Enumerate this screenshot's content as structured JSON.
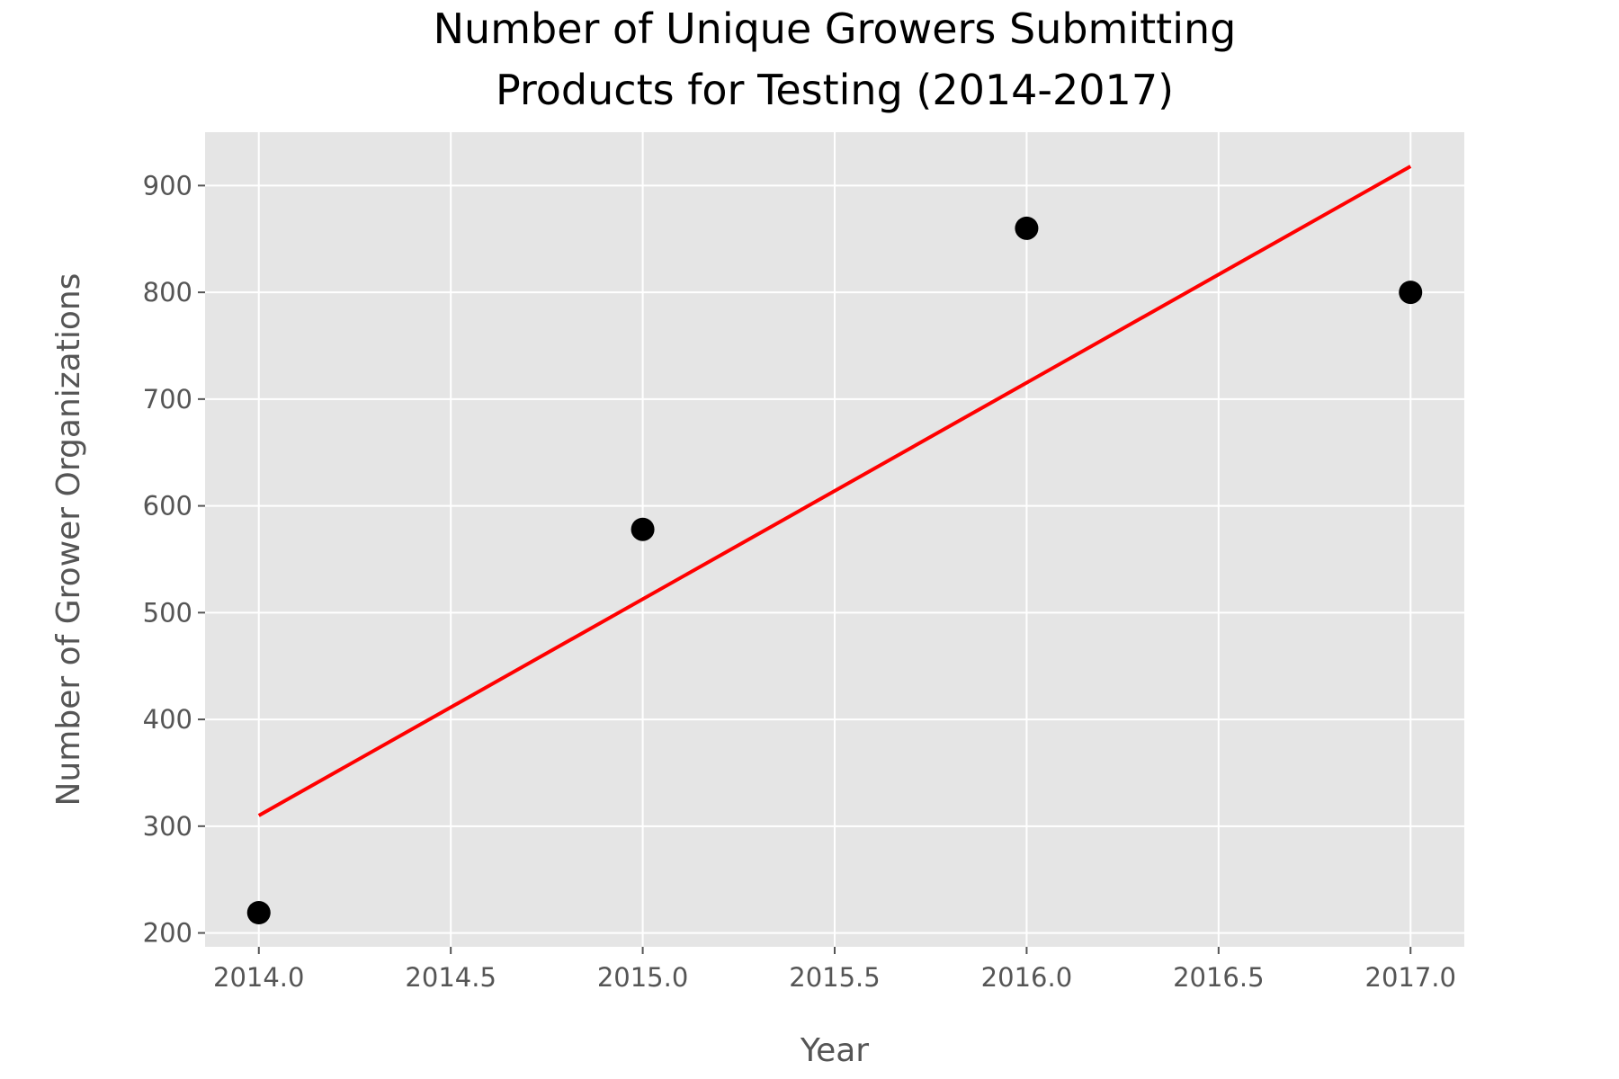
{
  "chart_data": {
    "type": "scatter",
    "title": "Number of Unique Growers Submitting Products for Testing (2014-2017)",
    "title_lines": [
      "Number of Unique Growers Submitting",
      "Products for Testing (2014-2017)"
    ],
    "xlabel": "Year",
    "ylabel": "Number of Grower Organizations",
    "xlim": [
      2013.86,
      2017.14
    ],
    "ylim": [
      187,
      950
    ],
    "x_ticks": [
      2014.0,
      2014.5,
      2015.0,
      2015.5,
      2016.0,
      2016.5,
      2017.0
    ],
    "x_tick_labels": [
      "2014.0",
      "2014.5",
      "2015.0",
      "2015.5",
      "2016.0",
      "2016.5",
      "2017.0"
    ],
    "y_ticks": [
      200,
      300,
      400,
      500,
      600,
      700,
      800,
      900
    ],
    "y_tick_labels": [
      "200",
      "300",
      "400",
      "500",
      "600",
      "700",
      "800",
      "900"
    ],
    "grid": true,
    "points": {
      "x": [
        2014,
        2015,
        2016,
        2017
      ],
      "y": [
        219,
        578,
        860,
        800
      ],
      "color": "#000000"
    },
    "trend_line": {
      "type": "line",
      "x": [
        2014,
        2017
      ],
      "y": [
        310,
        918
      ],
      "color": "#ff0000"
    },
    "colors": {
      "panel_background": "#e5e5e5",
      "grid": "#ffffff",
      "text": "#555555"
    }
  }
}
